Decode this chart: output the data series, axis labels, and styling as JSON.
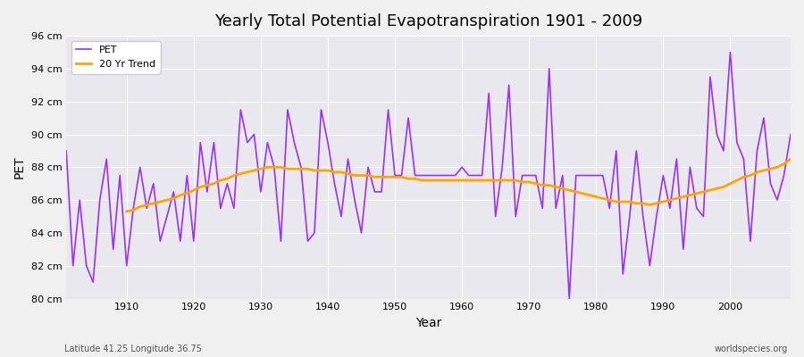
{
  "title": "Yearly Total Potential Evapotranspiration 1901 - 2009",
  "xlabel": "Year",
  "ylabel": "PET",
  "subtitle_left": "Latitude 41.25 Longitude 36.75",
  "subtitle_right": "worldspecies.org",
  "pet_color": "#9B30FF",
  "trend_color": "#FFA500",
  "background_color": "#E8E8EE",
  "ylim": [
    80,
    96
  ],
  "yticks": [
    80,
    82,
    84,
    86,
    88,
    90,
    92,
    94,
    96
  ],
  "ytick_labels": [
    "80 cm",
    "82 cm",
    "84 cm",
    "86 cm",
    "88 cm",
    "90 cm",
    "92 cm",
    "94 cm",
    "96 cm"
  ],
  "years": [
    1901,
    1902,
    1903,
    1904,
    1905,
    1906,
    1907,
    1908,
    1909,
    1910,
    1911,
    1912,
    1913,
    1914,
    1915,
    1916,
    1917,
    1918,
    1919,
    1920,
    1921,
    1922,
    1923,
    1924,
    1925,
    1926,
    1927,
    1928,
    1929,
    1930,
    1931,
    1932,
    1933,
    1934,
    1935,
    1936,
    1937,
    1938,
    1939,
    1940,
    1941,
    1942,
    1943,
    1944,
    1945,
    1946,
    1947,
    1948,
    1949,
    1950,
    1951,
    1952,
    1953,
    1954,
    1955,
    1956,
    1957,
    1958,
    1959,
    1960,
    1961,
    1962,
    1963,
    1964,
    1965,
    1966,
    1967,
    1968,
    1969,
    1970,
    1971,
    1972,
    1973,
    1974,
    1975,
    1976,
    1977,
    1978,
    1979,
    1980,
    1981,
    1982,
    1983,
    1984,
    1985,
    1986,
    1987,
    1988,
    1989,
    1990,
    1991,
    1992,
    1993,
    1994,
    1995,
    1996,
    1997,
    1998,
    1999,
    2000,
    2001,
    2002,
    2003,
    2004,
    2005,
    2006,
    2007,
    2008,
    2009
  ],
  "pet_values": [
    89.0,
    82.0,
    86.0,
    82.0,
    81.0,
    86.0,
    88.5,
    83.0,
    87.5,
    82.0,
    85.5,
    88.0,
    85.5,
    87.0,
    83.5,
    85.0,
    86.5,
    83.5,
    87.5,
    83.5,
    89.5,
    86.5,
    89.5,
    85.5,
    87.0,
    85.5,
    91.5,
    89.5,
    90.0,
    86.5,
    89.5,
    88.0,
    83.5,
    91.5,
    89.5,
    88.0,
    83.5,
    84.0,
    91.5,
    89.5,
    87.0,
    85.0,
    88.5,
    86.0,
    84.0,
    88.0,
    86.5,
    86.5,
    91.5,
    87.5,
    87.5,
    91.0,
    87.5,
    87.5,
    87.5,
    87.5,
    87.5,
    87.5,
    87.5,
    88.0,
    87.5,
    87.5,
    87.5,
    92.5,
    85.0,
    88.0,
    93.0,
    85.0,
    87.5,
    87.5,
    87.5,
    85.5,
    94.0,
    85.5,
    87.5,
    80.0,
    87.5,
    87.5,
    87.5,
    87.5,
    87.5,
    85.5,
    89.0,
    81.5,
    85.0,
    89.0,
    85.0,
    82.0,
    85.0,
    87.5,
    85.5,
    88.5,
    83.0,
    88.0,
    85.5,
    85.0,
    93.5,
    90.0,
    89.0,
    95.0,
    89.5,
    88.5,
    83.5,
    89.0,
    91.0,
    87.0,
    86.0,
    87.5,
    90.0
  ],
  "trend_years": [
    1910,
    1911,
    1912,
    1913,
    1914,
    1915,
    1916,
    1917,
    1918,
    1919,
    1920,
    1921,
    1922,
    1923,
    1924,
    1925,
    1926,
    1927,
    1928,
    1929,
    1930,
    1931,
    1932,
    1933,
    1934,
    1935,
    1936,
    1937,
    1938,
    1939,
    1940,
    1941,
    1942,
    1943,
    1944,
    1945,
    1946,
    1947,
    1948,
    1949,
    1950,
    1951,
    1952,
    1953,
    1954,
    1955,
    1956,
    1957,
    1958,
    1959,
    1960,
    1961,
    1962,
    1963,
    1964,
    1965,
    1966,
    1967,
    1968,
    1969,
    1970,
    1971,
    1972,
    1973,
    1974,
    1975,
    1976,
    1977,
    1978,
    1979,
    1980,
    1981,
    1982,
    1983,
    1984,
    1985,
    1986,
    1987,
    1988,
    1989,
    1990,
    1991,
    1992,
    1993,
    1994,
    1995,
    1996,
    1997,
    1998,
    1999,
    2000,
    2001,
    2002,
    2003,
    2004,
    2005,
    2006,
    2007,
    2008,
    2009
  ],
  "trend_values": [
    85.3,
    85.4,
    85.6,
    85.7,
    85.8,
    85.9,
    86.0,
    86.1,
    86.3,
    86.4,
    86.6,
    86.8,
    86.9,
    87.0,
    87.2,
    87.3,
    87.5,
    87.6,
    87.7,
    87.8,
    87.9,
    88.0,
    88.0,
    88.0,
    87.9,
    87.9,
    87.9,
    87.9,
    87.8,
    87.8,
    87.8,
    87.7,
    87.7,
    87.6,
    87.5,
    87.5,
    87.5,
    87.4,
    87.4,
    87.4,
    87.4,
    87.4,
    87.3,
    87.3,
    87.2,
    87.2,
    87.2,
    87.2,
    87.2,
    87.2,
    87.2,
    87.2,
    87.2,
    87.2,
    87.2,
    87.2,
    87.2,
    87.2,
    87.2,
    87.1,
    87.1,
    87.0,
    86.9,
    86.9,
    86.8,
    86.7,
    86.6,
    86.5,
    86.4,
    86.3,
    86.2,
    86.1,
    86.0,
    85.9,
    85.9,
    85.9,
    85.8,
    85.8,
    85.7,
    85.8,
    85.9,
    86.0,
    86.1,
    86.2,
    86.3,
    86.4,
    86.5,
    86.6,
    86.7,
    86.8,
    87.0,
    87.2,
    87.4,
    87.5,
    87.7,
    87.8,
    87.9,
    88.0,
    88.2,
    88.5
  ]
}
